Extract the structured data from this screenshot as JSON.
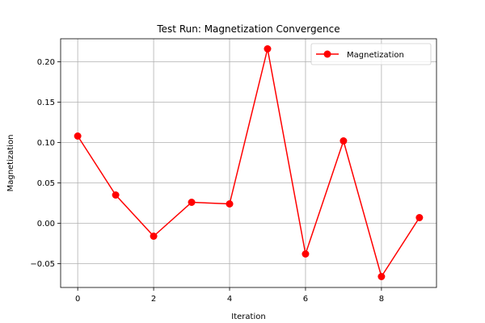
{
  "chart_data": {
    "type": "line",
    "title": "Test Run: Magnetization Convergence",
    "xlabel": "Iteration",
    "ylabel": "Magnetization",
    "xlim": [
      -0.45,
      9.45
    ],
    "ylim": [
      -0.0795,
      0.2285
    ],
    "x_ticks": [
      0,
      2,
      4,
      6,
      8
    ],
    "x_tick_labels": [
      "0",
      "2",
      "4",
      "6",
      "8"
    ],
    "y_ticks": [
      -0.05,
      0.0,
      0.05,
      0.1,
      0.15,
      0.2
    ],
    "y_tick_labels": [
      "−0.05",
      "0.00",
      "0.05",
      "0.10",
      "0.15",
      "0.20"
    ],
    "grid": true,
    "legend": "top-right",
    "color": "#ff0000",
    "marker": "circle",
    "series": [
      {
        "name": "Magnetization",
        "x": [
          0,
          1,
          2,
          3,
          4,
          5,
          6,
          7,
          8,
          9
        ],
        "y": [
          0.108,
          0.035,
          -0.016,
          0.026,
          0.024,
          0.216,
          -0.038,
          0.102,
          -0.066,
          0.007
        ]
      }
    ]
  }
}
